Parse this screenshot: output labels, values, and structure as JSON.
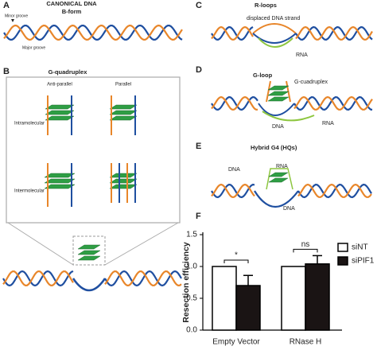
{
  "panels": {
    "a": {
      "label": "A",
      "title": "CANONICAL DNA",
      "subtitle": "B-form",
      "minor": "Minor groove",
      "major": "Major groove"
    },
    "b": {
      "label": "B",
      "title": "G-quadruplex",
      "col1": "Anti-parallel",
      "col2": "Parallel",
      "row1": "Intramolecular",
      "row2": "Intermolecular"
    },
    "c": {
      "label": "C",
      "title": "R-loops",
      "strand": "displaced DNA strand",
      "rna": "RNA"
    },
    "d": {
      "label": "D",
      "title": "G-loop",
      "g4": "G-cuadruplex",
      "dna": "DNA",
      "rna": "RNA"
    },
    "e": {
      "label": "E",
      "title": "Hybrid G4 (HQs)",
      "dna_top": "DNA",
      "rna": "RNA",
      "dna_bottom": "DNA"
    },
    "f": {
      "label": "F"
    }
  },
  "chart_data": {
    "type": "bar",
    "ylabel": "Resection efficiency",
    "categories": [
      "Empty Vector",
      "RNase H"
    ],
    "series": [
      {
        "name": "siNT",
        "color": "#ffffff",
        "values": [
          1.0,
          1.0
        ]
      },
      {
        "name": "siPIF1",
        "color": "#1a1414",
        "values": [
          0.7,
          1.04
        ],
        "errors": [
          0.16,
          0.13
        ]
      }
    ],
    "annotations": [
      "*",
      "ns"
    ],
    "ylim": [
      0,
      1.5
    ],
    "yticks": [
      {
        "value": 0,
        "label": "0.0"
      },
      0.5,
      {
        "value": 1,
        "label": "1.0"
      },
      1.5
    ]
  }
}
